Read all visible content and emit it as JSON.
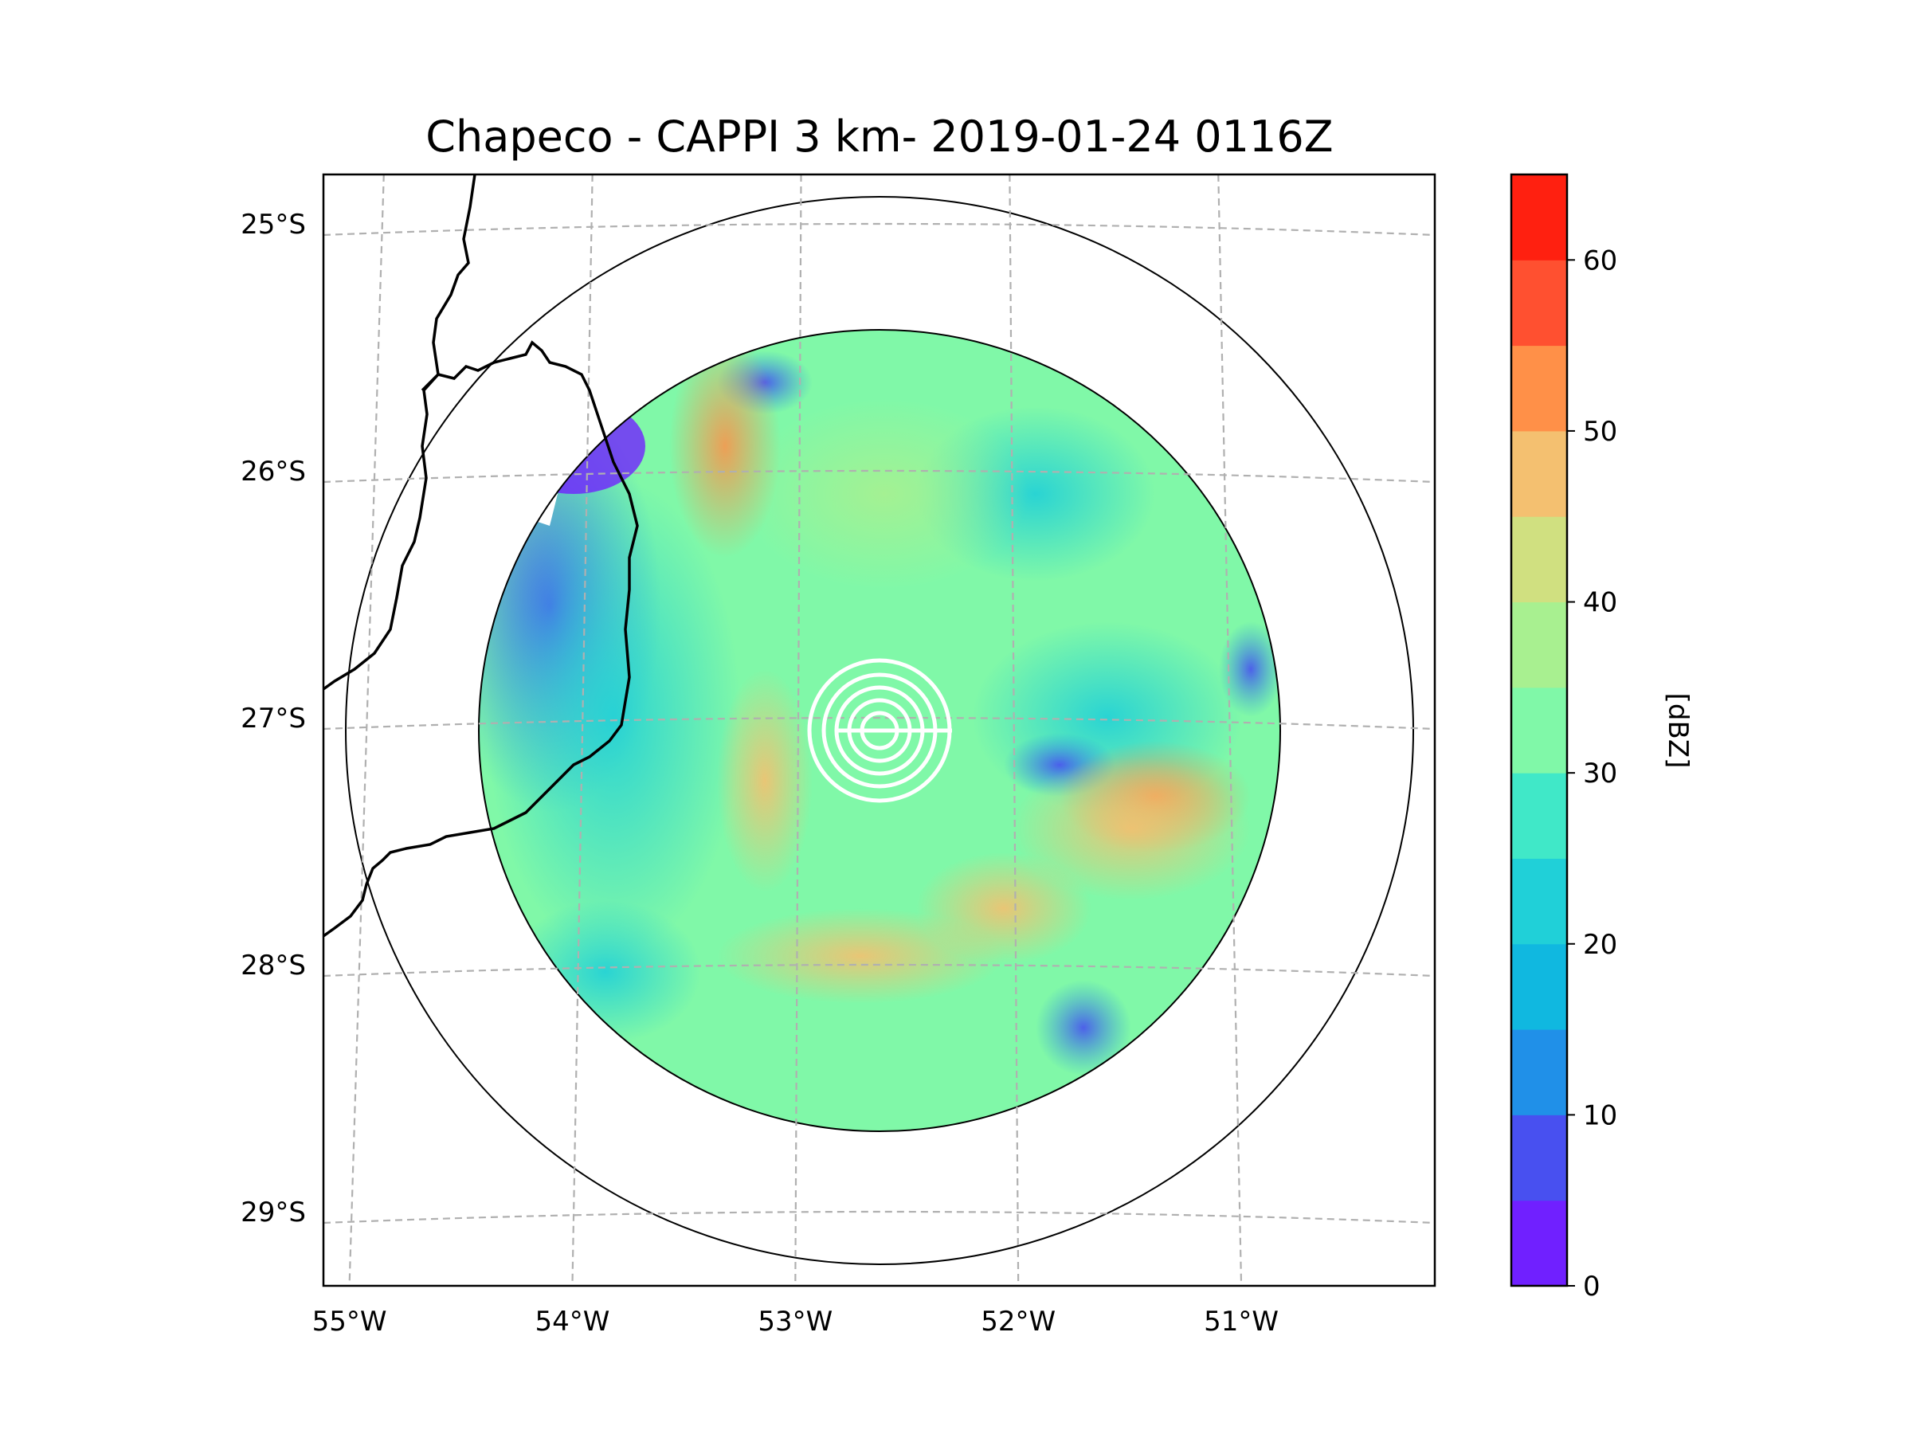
{
  "chart_data": {
    "type": "heatmap",
    "subtype": "radar-ppi-map",
    "title": "Chapeco - CAPPI 3 km- 2019-01-24 0116Z",
    "xlabel": "",
    "ylabel": "",
    "lon_ticks": [
      "55°W",
      "54°W",
      "53°W",
      "52°W",
      "51°W"
    ],
    "lat_ticks": [
      "25°S",
      "26°S",
      "27°S",
      "28°S",
      "29°S"
    ],
    "lon_values": [
      -55,
      -54,
      -53,
      -52,
      -51
    ],
    "lat_values": [
      -25,
      -26,
      -27,
      -28,
      -29
    ],
    "xlim": [
      -55.2,
      -50.05
    ],
    "ylim": [
      -29.3,
      -24.8
    ],
    "radar_center": {
      "lon": -52.6,
      "lat": -27.03
    },
    "grid": true,
    "colorbar": {
      "label": "[dBZ]",
      "ticks": [
        0,
        10,
        20,
        30,
        40,
        50,
        60
      ],
      "tick_labels": [
        "0",
        "10",
        "20",
        "30",
        "40",
        "50",
        "60"
      ],
      "range": [
        0,
        65
      ],
      "levels": [
        0,
        5,
        10,
        15,
        20,
        25,
        30,
        35,
        40,
        45,
        50,
        55,
        60,
        65
      ],
      "colors": [
        "#7020ff",
        "#4850f0",
        "#2090e8",
        "#10b8e0",
        "#20d0d8",
        "#40e8c8",
        "#80f8a8",
        "#a8f090",
        "#d0e080",
        "#f4c070",
        "#ff9048",
        "#ff5030",
        "#ff2010"
      ]
    },
    "field_notes": "Reflectivity mostly 25-40 dBZ; weak echoes (0-15 dBZ) along western edge; bands of 45-50 dBZ to the NW, south and east of the radar."
  }
}
